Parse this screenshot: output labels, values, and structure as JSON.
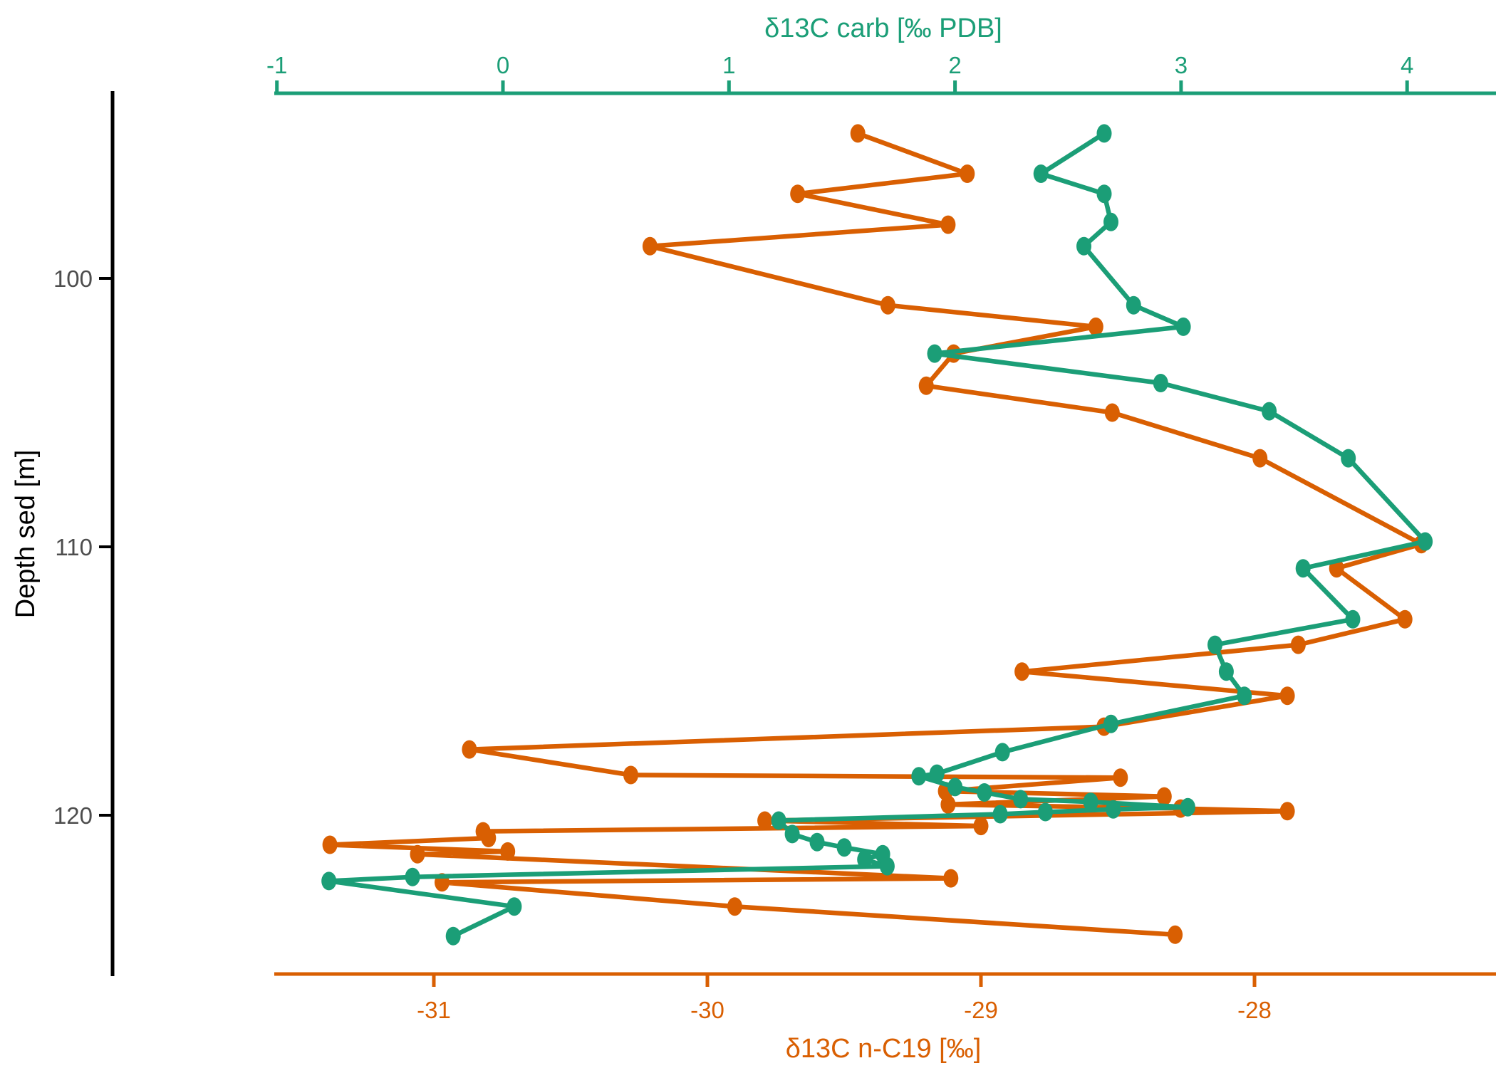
{
  "figure": {
    "kind": "depth profile scatter-line chart",
    "background": "#ffffff"
  },
  "chart_data": {
    "type": "line",
    "orientation": "vertical-depth-profile",
    "title": "",
    "grid": false,
    "legend": "none",
    "axes": {
      "top": {
        "label": "δ13C carb [‰ PDB]",
        "ticks": [
          -1,
          0,
          1,
          2,
          3,
          4
        ],
        "range": [
          -1.02,
          4.39
        ],
        "color": "#1B9E77"
      },
      "bottom": {
        "label": "δ13C n-C19 [‰]",
        "ticks": [
          -31,
          -30,
          -29,
          -28
        ],
        "range": [
          -31.58,
          -27.12
        ],
        "color": "#D95F02"
      },
      "left": {
        "label": "Depth sed [m]",
        "ticks": [
          100,
          110,
          120
        ],
        "range": [
          93.1,
          125.9
        ],
        "tick_color": "#4D4D4D",
        "line_color": "#000000",
        "title_color": "#000000"
      }
    },
    "series": [
      {
        "name": "δ13C n-C19",
        "axis": "bottom",
        "color": "#D95F02",
        "points": [
          {
            "depth": 94.6,
            "value": -29.45
          },
          {
            "depth": 96.1,
            "value": -29.05
          },
          {
            "depth": 96.85,
            "value": -29.67
          },
          {
            "depth": 98.0,
            "value": -29.12
          },
          {
            "depth": 98.8,
            "value": -30.21
          },
          {
            "depth": 101.0,
            "value": -29.34
          },
          {
            "depth": 101.8,
            "value": -28.58
          },
          {
            "depth": 102.8,
            "value": -29.1
          },
          {
            "depth": 104.0,
            "value": -29.2
          },
          {
            "depth": 105.0,
            "value": -28.52
          },
          {
            "depth": 106.7,
            "value": -27.98
          },
          {
            "depth": 109.9,
            "value": -27.39
          },
          {
            "depth": 110.8,
            "value": -27.7
          },
          {
            "depth": 112.7,
            "value": -27.45
          },
          {
            "depth": 113.65,
            "value": -27.84
          },
          {
            "depth": 114.65,
            "value": -28.85
          },
          {
            "depth": 115.55,
            "value": -27.88
          },
          {
            "depth": 116.7,
            "value": -28.55
          },
          {
            "depth": 117.55,
            "value": -30.87
          },
          {
            "depth": 118.5,
            "value": -30.28
          },
          {
            "depth": 118.6,
            "value": -28.49
          },
          {
            "depth": 119.1,
            "value": -29.13
          },
          {
            "depth": 119.3,
            "value": -28.33
          },
          {
            "depth": 119.6,
            "value": -29.12
          },
          {
            "depth": 119.75,
            "value": -28.27
          },
          {
            "depth": 119.85,
            "value": -27.88
          },
          {
            "depth": 120.2,
            "value": -29.79
          },
          {
            "depth": 120.4,
            "value": -29.0
          },
          {
            "depth": 120.6,
            "value": -30.82
          },
          {
            "depth": 120.85,
            "value": -30.8
          },
          {
            "depth": 121.1,
            "value": -31.38
          },
          {
            "depth": 121.35,
            "value": -30.73
          },
          {
            "depth": 121.45,
            "value": -31.06
          },
          {
            "depth": 122.35,
            "value": -29.11
          },
          {
            "depth": 122.5,
            "value": -30.97
          },
          {
            "depth": 123.4,
            "value": -29.9
          },
          {
            "depth": 124.45,
            "value": -28.29
          }
        ]
      },
      {
        "name": "δ13C carb",
        "axis": "top",
        "color": "#1B9E77",
        "points": [
          {
            "depth": 94.6,
            "value": 2.66
          },
          {
            "depth": 96.1,
            "value": 2.38
          },
          {
            "depth": 96.85,
            "value": 2.66
          },
          {
            "depth": 97.9,
            "value": 2.69
          },
          {
            "depth": 98.8,
            "value": 2.57
          },
          {
            "depth": 101.0,
            "value": 2.79
          },
          {
            "depth": 101.8,
            "value": 3.01
          },
          {
            "depth": 102.8,
            "value": 1.91
          },
          {
            "depth": 103.9,
            "value": 2.91
          },
          {
            "depth": 104.95,
            "value": 3.39
          },
          {
            "depth": 106.7,
            "value": 3.74
          },
          {
            "depth": 109.8,
            "value": 4.08
          },
          {
            "depth": 110.8,
            "value": 3.54
          },
          {
            "depth": 112.7,
            "value": 3.76
          },
          {
            "depth": 113.65,
            "value": 3.15
          },
          {
            "depth": 114.65,
            "value": 3.2
          },
          {
            "depth": 115.55,
            "value": 3.28
          },
          {
            "depth": 116.6,
            "value": 2.69
          },
          {
            "depth": 117.65,
            "value": 2.21
          },
          {
            "depth": 118.45,
            "value": 1.92
          },
          {
            "depth": 118.55,
            "value": 1.84
          },
          {
            "depth": 118.95,
            "value": 2.0
          },
          {
            "depth": 119.15,
            "value": 2.13
          },
          {
            "depth": 119.4,
            "value": 2.29
          },
          {
            "depth": 119.5,
            "value": 2.6
          },
          {
            "depth": 119.7,
            "value": 3.03
          },
          {
            "depth": 119.78,
            "value": 2.7
          },
          {
            "depth": 119.88,
            "value": 2.4
          },
          {
            "depth": 119.96,
            "value": 2.2
          },
          {
            "depth": 120.2,
            "value": 1.22
          },
          {
            "depth": 120.7,
            "value": 1.28
          },
          {
            "depth": 121.0,
            "value": 1.39
          },
          {
            "depth": 121.2,
            "value": 1.51
          },
          {
            "depth": 121.45,
            "value": 1.68
          },
          {
            "depth": 121.65,
            "value": 1.6
          },
          {
            "depth": 121.9,
            "value": 1.7
          },
          {
            "depth": 122.3,
            "value": -0.4
          },
          {
            "depth": 122.45,
            "value": -0.77
          },
          {
            "depth": 123.4,
            "value": 0.05
          },
          {
            "depth": 124.5,
            "value": -0.22
          }
        ]
      }
    ]
  }
}
